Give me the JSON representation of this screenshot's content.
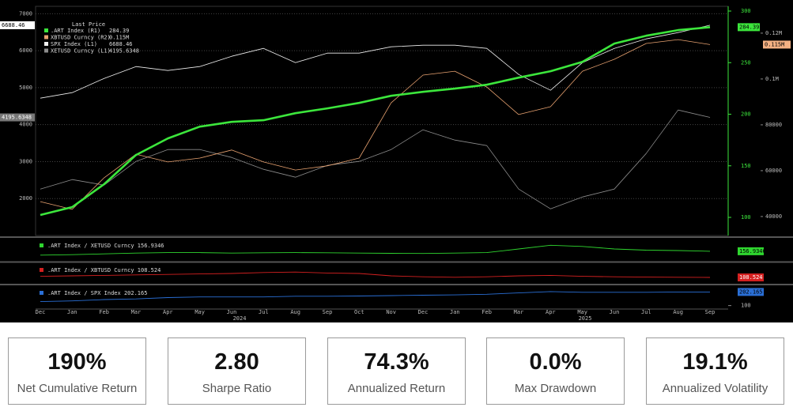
{
  "chart_data": [
    {
      "type": "line",
      "categories": [
        "Dec",
        "Jan",
        "Feb",
        "Mar",
        "Apr",
        "May",
        "Jun",
        "Jul",
        "Aug",
        "Sep",
        "Oct",
        "Nov",
        "Dec",
        "Jan",
        "Feb",
        "Mar",
        "Apr",
        "May",
        "Jun",
        "Jul",
        "Aug",
        "Sep"
      ],
      "years": [
        "2024",
        "2025"
      ],
      "legend_title": "Last Price",
      "grid": true,
      "ylim": [
        1000,
        7200
      ],
      "yticks": [
        2000,
        3000,
        4000,
        5000,
        6000,
        7000
      ],
      "y2lim": [
        82.4,
        304.6
      ],
      "y2ticks": [
        100,
        150,
        200,
        250,
        300
      ],
      "y3lim": [
        31700,
        131700
      ],
      "y3ticks": [
        40000,
        60000,
        80000,
        {
          "value": 100000,
          "label": "0.1M"
        },
        {
          "value": 120000,
          "label": "0.12M"
        }
      ],
      "series": [
        {
          "name": ".ART Index (R1)",
          "color": "#3ce63c",
          "axis": "y2",
          "last": 284.39,
          "values": [
            102.3,
            110,
            132.2,
            160.5,
            176.6,
            188,
            192.6,
            194.2,
            201,
            205.7,
            211,
            217.9,
            221.7,
            224.8,
            228.6,
            235.5,
            241.7,
            250.8,
            268.5,
            276.1,
            281.5,
            284.39
          ]
        },
        {
          "name": "XBTUSD Curncy (R2)",
          "color": "#e8a270",
          "axis": "y3",
          "last": {
            "value": 115000,
            "label": "0.115M"
          },
          "values": [
            46500,
            43100,
            56900,
            67200,
            63800,
            65500,
            69000,
            63800,
            60300,
            62100,
            65500,
            89600,
            101700,
            103400,
            96500,
            84500,
            87900,
            103400,
            108600,
            115500,
            117200,
            115000
          ]
        },
        {
          "name": "SPX Index (L1)",
          "color": "#eeeeee",
          "axis": "y",
          "last": 6688.46,
          "values": [
            4715,
            4865,
            5250,
            5570,
            5464,
            5570,
            5848,
            6062,
            5677,
            5934,
            5934,
            6105,
            6148,
            6148,
            6062,
            5357,
            4929,
            5677,
            6062,
            6319,
            6490,
            6688.46
          ]
        },
        {
          "name": "XETUSD Curncy (L1)",
          "color": "#8c8c8c",
          "axis": "y",
          "last": 4195.6348,
          "values": [
            2257,
            2513,
            2363,
            3005,
            3326,
            3326,
            3112,
            2791,
            2577,
            2898,
            3005,
            3326,
            3860,
            3582,
            3432,
            2257,
            1722,
            2043,
            2257,
            3219,
            4395,
            4195.6348
          ]
        }
      ]
    },
    {
      "type": "line",
      "ylim": [
        50,
        300
      ],
      "yticks": [],
      "series": [
        {
          "name": ".ART Index / XETUSD Curncy",
          "color": "#2fd62f",
          "last": 156.9346,
          "values": [
            110,
            115,
            125,
            135,
            140,
            140,
            135,
            138,
            140,
            138,
            135,
            132,
            130,
            135,
            140,
            185,
            230,
            215,
            185,
            170,
            165,
            156.9346
          ]
        }
      ]
    },
    {
      "type": "line",
      "ylim": [
        50,
        250
      ],
      "yticks": [],
      "series": [
        {
          "name": ".ART Index / XBTUSD Curncy",
          "color": "#d42020",
          "last": 108.524,
          "values": [
            120,
            125,
            130,
            135,
            140,
            145,
            150,
            160,
            165,
            155,
            150,
            125,
            115,
            110,
            115,
            125,
            130,
            120,
            115,
            112,
            110,
            108.524
          ]
        }
      ]
    },
    {
      "type": "line",
      "ylim": [
        80,
        240
      ],
      "yticks": [
        100
      ],
      "series": [
        {
          "name": ".ART Index / SPX Index",
          "color": "#2a6fd6",
          "last": 202.165,
          "values": [
            130,
            135,
            145,
            150,
            160,
            165,
            165,
            165,
            170,
            170,
            172,
            175,
            178,
            180,
            185,
            195,
            205,
            200,
            200,
            200,
            202,
            202.165
          ]
        }
      ]
    }
  ],
  "kpis": [
    {
      "value": "190%",
      "label": "Net Cumulative Return"
    },
    {
      "value": "2.80",
      "label": "Sharpe Ratio"
    },
    {
      "value": "74.3%",
      "label": "Annualized Return"
    },
    {
      "value": "0.0%",
      "label": "Max Drawdown"
    },
    {
      "value": "19.1%",
      "label": "Annualized Volatility"
    }
  ]
}
